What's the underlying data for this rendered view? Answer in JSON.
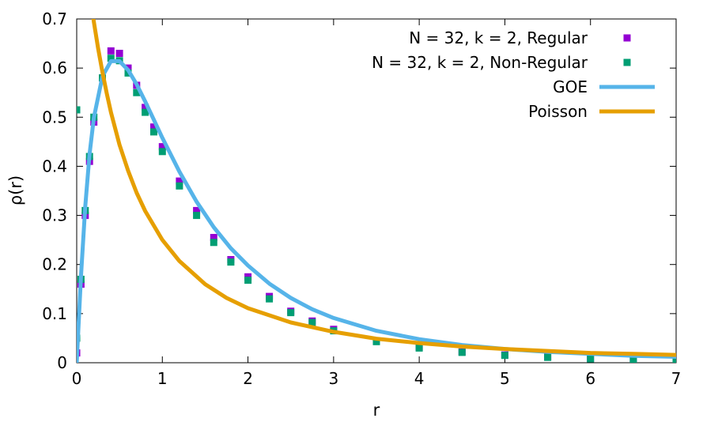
{
  "chart_data": {
    "type": "scatter",
    "title": "",
    "xlabel": "r",
    "ylabel": "ρ(r)",
    "xlim": [
      0,
      7
    ],
    "ylim": [
      0,
      0.7
    ],
    "xticks": [
      0,
      1,
      2,
      3,
      4,
      5,
      6,
      7
    ],
    "yticks": [
      0,
      0.1,
      0.2,
      0.3,
      0.4,
      0.5,
      0.6,
      0.7
    ],
    "ytick_labels": [
      "0",
      "0.1",
      "0.2",
      "0.3",
      "0.4",
      "0.5",
      "0.6",
      "0.7"
    ],
    "grid": false,
    "legend_position": "top-right",
    "series": [
      {
        "name": "N = 32, k = 2, Regular",
        "kind": "points",
        "color": "#9400d3",
        "x": [
          0.0,
          0.05,
          0.1,
          0.15,
          0.2,
          0.3,
          0.4,
          0.5,
          0.6,
          0.7,
          0.8,
          0.9,
          1.0,
          1.2,
          1.4,
          1.6,
          1.8,
          2.0,
          2.25,
          2.5,
          2.75,
          3.0,
          3.5,
          4.0,
          4.5,
          5.0,
          5.5,
          6.0,
          6.5,
          7.0
        ],
        "y": [
          0.02,
          0.16,
          0.3,
          0.41,
          0.49,
          0.58,
          0.635,
          0.63,
          0.6,
          0.565,
          0.52,
          0.48,
          0.44,
          0.37,
          0.31,
          0.255,
          0.21,
          0.175,
          0.135,
          0.105,
          0.085,
          0.068,
          0.045,
          0.032,
          0.022,
          0.016,
          0.012,
          0.009,
          0.007,
          0.006
        ]
      },
      {
        "name": "N = 32, k = 2, Non-Regular",
        "kind": "points",
        "color": "#009e73",
        "x": [
          0.0,
          0.0,
          0.05,
          0.1,
          0.15,
          0.2,
          0.3,
          0.4,
          0.5,
          0.6,
          0.7,
          0.8,
          0.9,
          1.0,
          1.2,
          1.4,
          1.6,
          1.8,
          2.0,
          2.25,
          2.5,
          2.75,
          3.0,
          3.5,
          4.0,
          4.5,
          5.0,
          5.5,
          6.0,
          6.5,
          7.0
        ],
        "y": [
          0.515,
          0.05,
          0.17,
          0.31,
          0.42,
          0.5,
          0.58,
          0.62,
          0.615,
          0.59,
          0.55,
          0.51,
          0.47,
          0.43,
          0.36,
          0.3,
          0.245,
          0.205,
          0.168,
          0.13,
          0.102,
          0.082,
          0.065,
          0.043,
          0.03,
          0.021,
          0.015,
          0.011,
          0.008,
          0.006,
          0.005
        ]
      },
      {
        "name": "GOE",
        "kind": "line",
        "color": "#56b4e9",
        "x": [
          0.0,
          0.05,
          0.1,
          0.15,
          0.2,
          0.3,
          0.4,
          0.5,
          0.6,
          0.7,
          0.8,
          0.9,
          1.0,
          1.2,
          1.4,
          1.6,
          1.8,
          2.0,
          2.25,
          2.5,
          2.75,
          3.0,
          3.5,
          4.0,
          4.5,
          5.0,
          5.5,
          6.0,
          6.5,
          7.0
        ],
        "y": [
          0.0,
          0.176,
          0.318,
          0.424,
          0.499,
          0.583,
          0.614,
          0.614,
          0.596,
          0.567,
          0.532,
          0.495,
          0.458,
          0.389,
          0.328,
          0.276,
          0.233,
          0.198,
          0.161,
          0.132,
          0.109,
          0.091,
          0.065,
          0.048,
          0.036,
          0.028,
          0.022,
          0.018,
          0.014,
          0.012
        ]
      },
      {
        "name": "Poisson",
        "kind": "line",
        "color": "#e69f00",
        "x": [
          0.18,
          0.2,
          0.25,
          0.3,
          0.35,
          0.4,
          0.5,
          0.6,
          0.7,
          0.8,
          1.0,
          1.2,
          1.5,
          1.75,
          2.0,
          2.5,
          3.0,
          3.5,
          4.0,
          4.5,
          5.0,
          5.5,
          6.0,
          6.5,
          7.0
        ],
        "y": [
          0.718,
          0.694,
          0.64,
          0.592,
          0.549,
          0.51,
          0.444,
          0.391,
          0.346,
          0.309,
          0.25,
          0.207,
          0.16,
          0.132,
          0.111,
          0.082,
          0.063,
          0.049,
          0.04,
          0.033,
          0.028,
          0.024,
          0.02,
          0.018,
          0.016
        ]
      }
    ]
  }
}
